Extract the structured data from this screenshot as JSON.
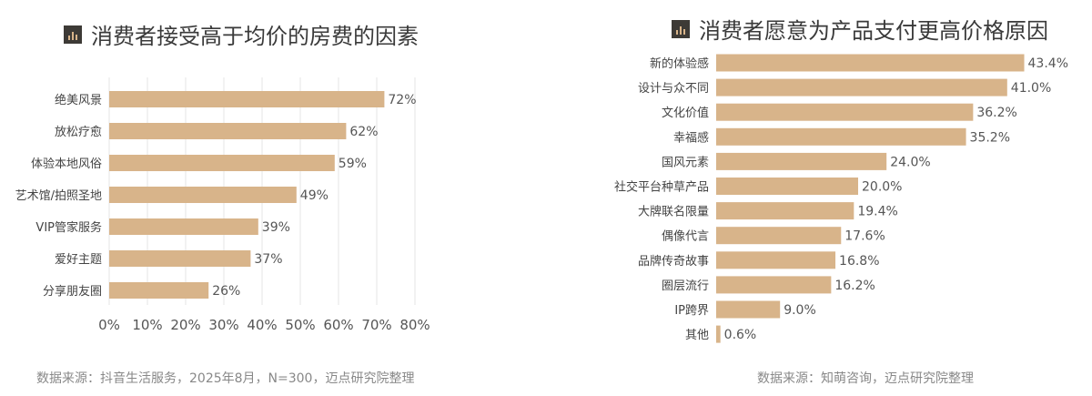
{
  "colors": {
    "bar": "#d8b48a",
    "grid": "#e6e6e6",
    "text": "#444444",
    "icon_bg": "#3d3a36"
  },
  "chart_data": [
    {
      "type": "bar",
      "orientation": "horizontal",
      "title": "消费者接受高于均价的房费的因素",
      "categories": [
        "绝美风景",
        "放松疗愈",
        "体验本地风俗",
        "艺术馆/拍照圣地",
        "VIP管家服务",
        "爱好主题",
        "分享朋友圈"
      ],
      "values": [
        72,
        62,
        59,
        49,
        39,
        37,
        26
      ],
      "data_labels": [
        "72%",
        "62%",
        "59%",
        "49%",
        "39%",
        "37%",
        "26%"
      ],
      "xlim": [
        0,
        80
      ],
      "x_ticks": [
        "0%",
        "10%",
        "20%",
        "30%",
        "40%",
        "50%",
        "60%",
        "70%",
        "80%"
      ],
      "grid": true,
      "source": "数据来源：抖音生活服务，2025年8月，N=300，迈点研究院整理"
    },
    {
      "type": "bar",
      "orientation": "horizontal",
      "title": "消费者愿意为产品支付更高价格原因",
      "categories": [
        "新的体验感",
        "设计与众不同",
        "文化价值",
        "幸福感",
        "国风元素",
        "社交平台种草产品",
        "大牌联名限量",
        "偶像代言",
        "品牌传奇故事",
        "圈层流行",
        "IP跨界",
        "其他"
      ],
      "values": [
        43.4,
        41.0,
        36.2,
        35.2,
        24.0,
        20.0,
        19.4,
        17.6,
        16.8,
        16.2,
        9.0,
        0.6
      ],
      "data_labels": [
        "43.4%",
        "41.0%",
        "36.2%",
        "35.2%",
        "24.0%",
        "20.0%",
        "19.4%",
        "17.6%",
        "16.8%",
        "16.2%",
        "9.0%",
        "0.6%"
      ],
      "grid": false,
      "source": "数据来源：知萌咨询，迈点研究院整理"
    }
  ]
}
